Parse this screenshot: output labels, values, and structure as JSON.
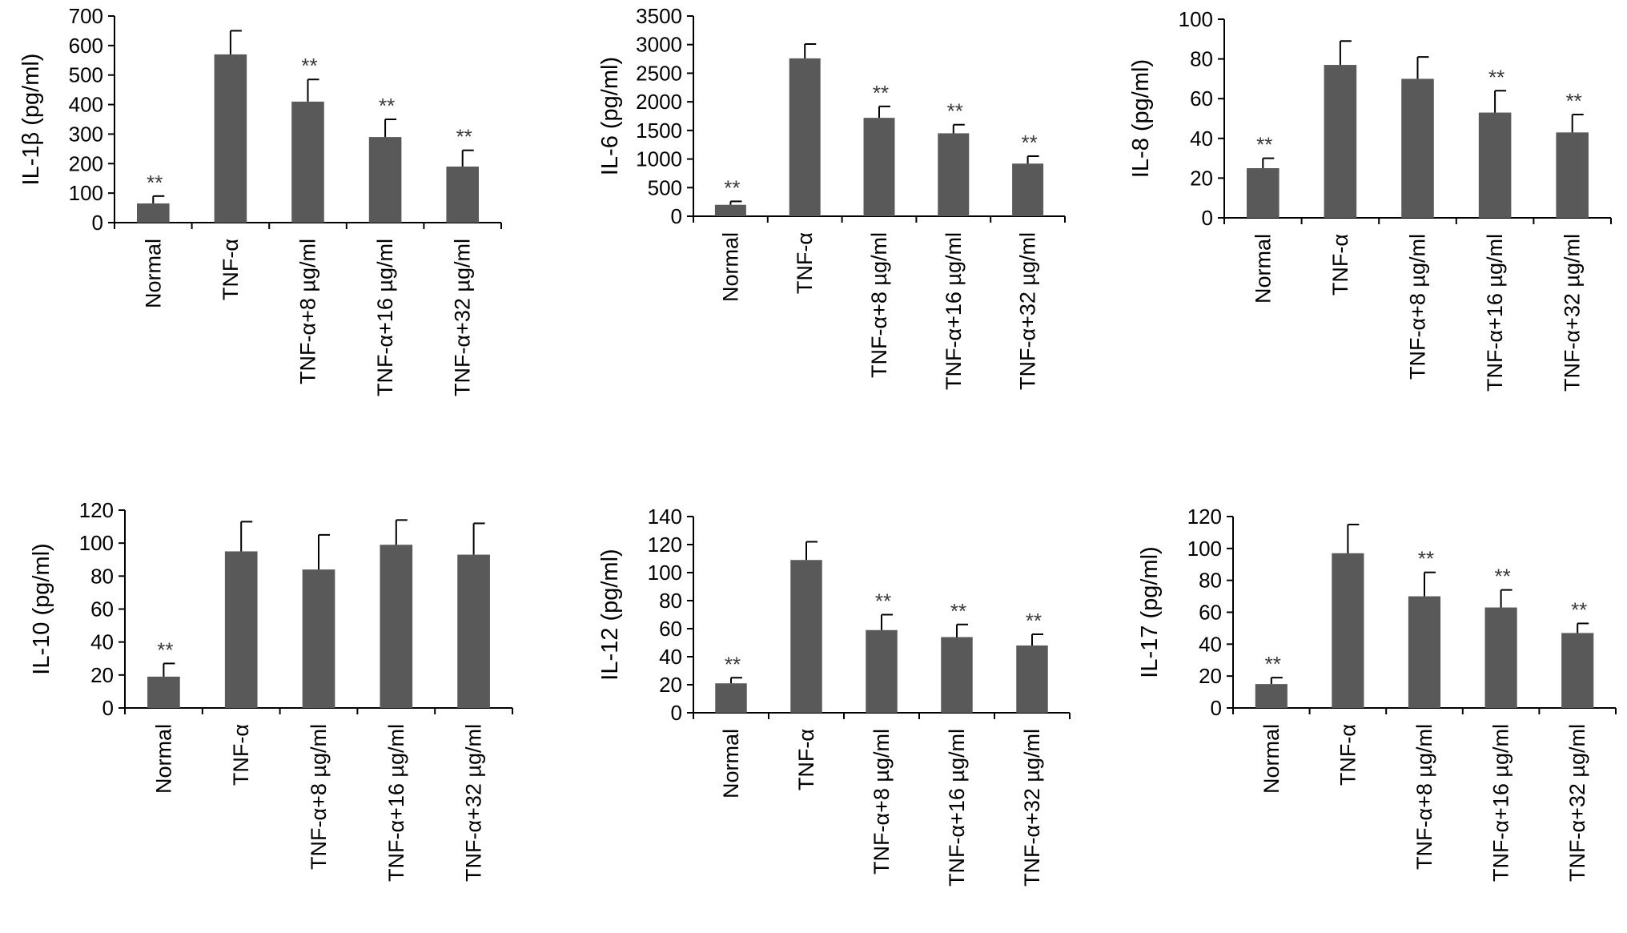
{
  "figure": {
    "bar_color": "#595959",
    "axis_color": "#000000"
  },
  "chart_data": [
    {
      "type": "bar",
      "ylabel": "IL-1β (pg/ml)",
      "categories": [
        "Normal",
        "TNF-α",
        "TNF-α+8 µg/ml",
        "TNF-α+16 µg/ml",
        "TNF-α+32 µg/ml"
      ],
      "values": [
        65,
        570,
        410,
        290,
        190
      ],
      "error": [
        25,
        80,
        75,
        60,
        55
      ],
      "significance": [
        "**",
        "",
        "**",
        "**",
        "**"
      ],
      "ylim": [
        0,
        700
      ],
      "yticks": [
        "0",
        "100",
        "200",
        "300",
        "400",
        "500",
        "600",
        "700"
      ]
    },
    {
      "type": "bar",
      "ylabel": "IL-6 (pg/ml)",
      "categories": [
        "Normal",
        "TNF-α",
        "TNF-α+8 µg/ml",
        "TNF-α+16 µg/ml",
        "TNF-α+32 µg/ml"
      ],
      "values": [
        200,
        2760,
        1720,
        1450,
        920
      ],
      "error": [
        60,
        250,
        200,
        150,
        130
      ],
      "significance": [
        "**",
        "",
        "**",
        "**",
        "**"
      ],
      "ylim": [
        0,
        3500
      ],
      "yticks": [
        "0",
        "500",
        "1000",
        "1500",
        "2000",
        "2500",
        "3000",
        "3500"
      ]
    },
    {
      "type": "bar",
      "ylabel": "IL-8 (pg/ml)",
      "categories": [
        "Normal",
        "TNF-α",
        "TNF-α+8 µg/ml",
        "TNF-α+16 µg/ml",
        "TNF-α+32 µg/ml"
      ],
      "values": [
        25,
        77,
        70,
        53,
        43
      ],
      "error": [
        5,
        12,
        11,
        11,
        9
      ],
      "significance": [
        "**",
        "",
        "",
        "**",
        "**"
      ],
      "ylim": [
        0,
        100
      ],
      "yticks": [
        "0",
        "20",
        "40",
        "60",
        "80",
        "100"
      ]
    },
    {
      "type": "bar",
      "ylabel": "IL-10 (pg/ml)",
      "categories": [
        "Normal",
        "TNF-α",
        "TNF-α+8 µg/ml",
        "TNF-α+16 µg/ml",
        "TNF-α+32 µg/ml"
      ],
      "values": [
        19,
        95,
        84,
        99,
        93
      ],
      "error": [
        8,
        18,
        21,
        15,
        19
      ],
      "significance": [
        "**",
        "",
        "",
        "",
        ""
      ],
      "ylim": [
        0,
        120
      ],
      "yticks": [
        "0",
        "20",
        "40",
        "60",
        "80",
        "100",
        "120"
      ]
    },
    {
      "type": "bar",
      "ylabel": "IL-12 (pg/ml)",
      "categories": [
        "Normal",
        "TNF-α",
        "TNF-α+8 µg/ml",
        "TNF-α+16 µg/ml",
        "TNF-α+32 µg/ml"
      ],
      "values": [
        21,
        109,
        59,
        54,
        48
      ],
      "error": [
        4,
        13,
        11,
        9,
        8
      ],
      "significance": [
        "**",
        "",
        "**",
        "**",
        "**"
      ],
      "ylim": [
        0,
        140
      ],
      "yticks": [
        "0",
        "20",
        "40",
        "60",
        "80",
        "100",
        "120",
        "140"
      ]
    },
    {
      "type": "bar",
      "ylabel": "IL-17 (pg/ml)",
      "categories": [
        "Normal",
        "TNF-α",
        "TNF-α+8 µg/ml",
        "TNF-α+16 µg/ml",
        "TNF-α+32 µg/ml"
      ],
      "values": [
        15,
        97,
        70,
        63,
        47
      ],
      "error": [
        4,
        18,
        15,
        11,
        6
      ],
      "significance": [
        "**",
        "",
        "**",
        "**",
        "**"
      ],
      "ylim": [
        0,
        120
      ],
      "yticks": [
        "0",
        "20",
        "40",
        "60",
        "80",
        "100",
        "120"
      ]
    }
  ]
}
